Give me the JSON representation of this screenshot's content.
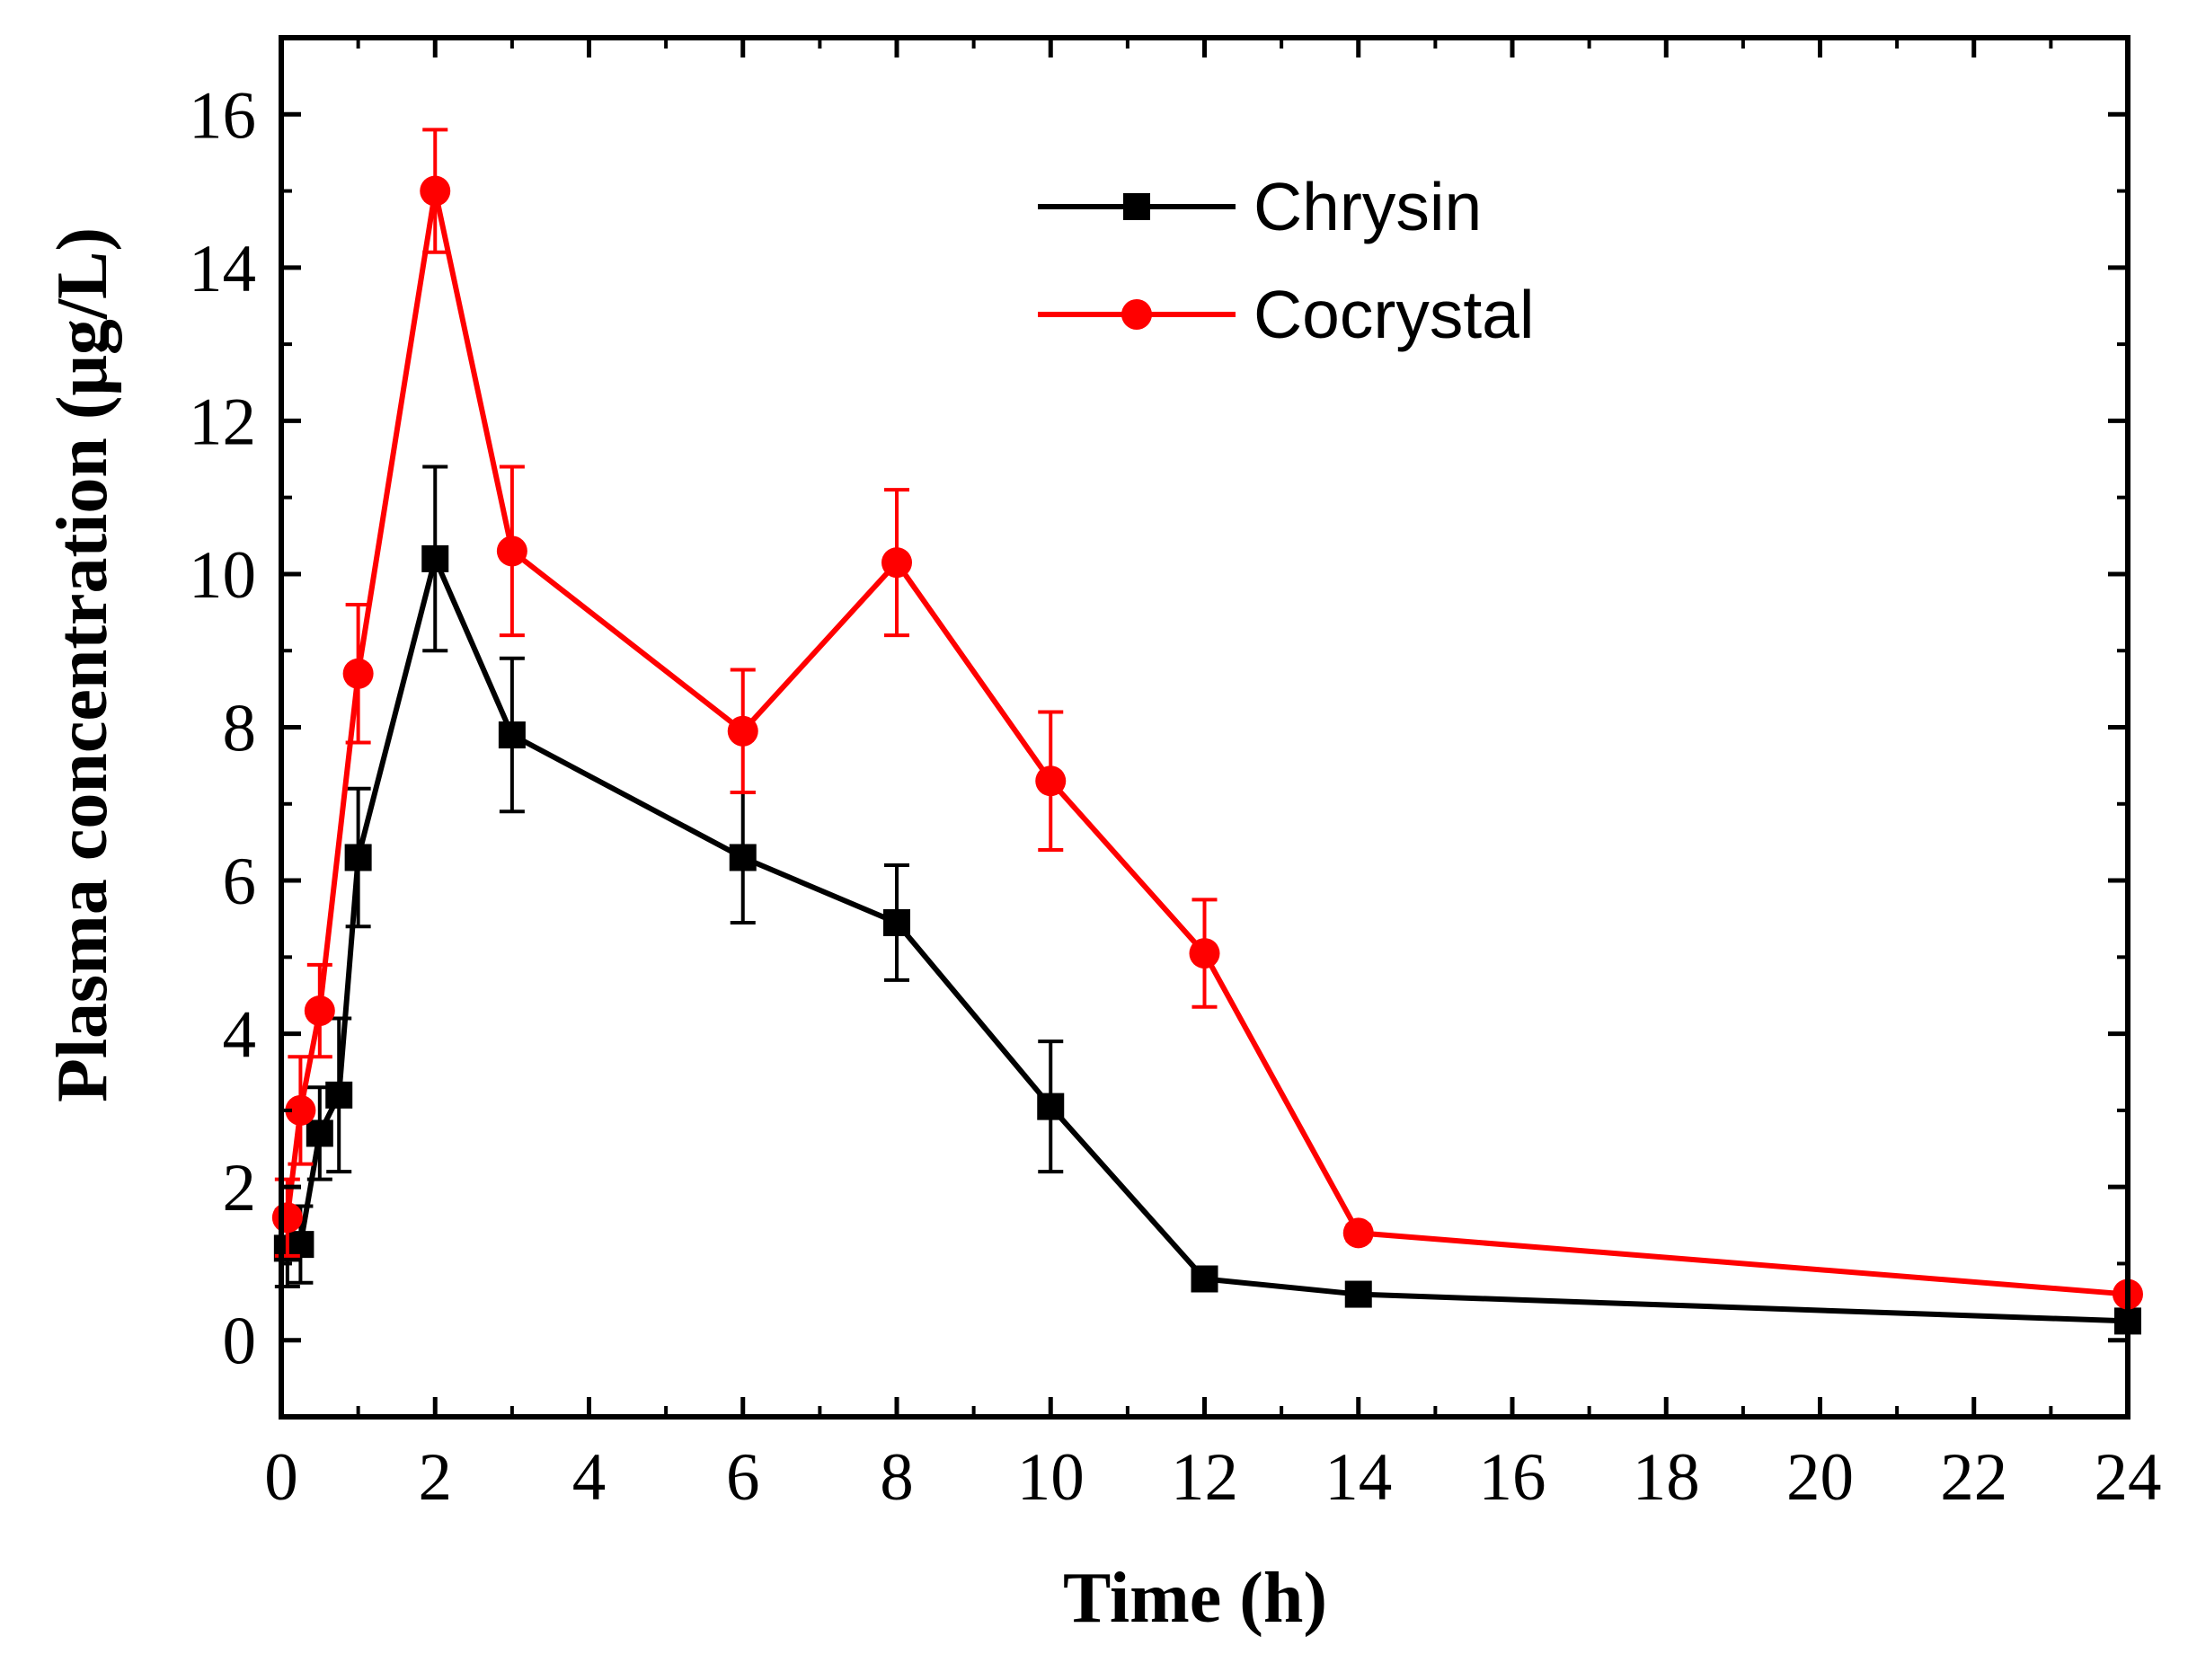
{
  "chart_data": {
    "type": "line",
    "title": "",
    "xlabel": "Time (h)",
    "ylabel": "Plasma concentration (μg/L)",
    "xlim": [
      0,
      24
    ],
    "ylim": [
      -1,
      17
    ],
    "grid": false,
    "legend_position": "top-center",
    "x_ticks": [
      0,
      2,
      4,
      6,
      8,
      10,
      12,
      14,
      16,
      18,
      20,
      22,
      24
    ],
    "x_tick_labels": [
      "0",
      "2",
      "4",
      "6",
      "8",
      "10",
      "12",
      "14",
      "16",
      "18",
      "20",
      "22",
      "24"
    ],
    "y_ticks": [
      0,
      2,
      4,
      6,
      8,
      10,
      12,
      14,
      16
    ],
    "y_tick_labels": [
      "0",
      "2",
      "4",
      "6",
      "8",
      "10",
      "12",
      "14",
      "16"
    ],
    "series": [
      {
        "name": "Chrysin",
        "color": "#000000",
        "marker": "square",
        "x": [
          0.08,
          0.25,
          0.5,
          0.75,
          1,
          2,
          3,
          6,
          8,
          10,
          12,
          14,
          24
        ],
        "y": [
          1.2,
          1.25,
          2.7,
          3.2,
          6.3,
          10.2,
          7.9,
          6.3,
          5.45,
          3.05,
          0.8,
          0.6,
          0.25
        ],
        "error": [
          0.5,
          0.5,
          0.6,
          1.0,
          0.9,
          1.2,
          1.0,
          0.85,
          0.75,
          0.85,
          0.1,
          0.15,
          0.05
        ]
      },
      {
        "name": "Cocrystal",
        "color": "#ff0000",
        "marker": "circle",
        "x": [
          0.08,
          0.25,
          0.5,
          1,
          2,
          3,
          6,
          8,
          10,
          12,
          14,
          24
        ],
        "y": [
          1.6,
          3.0,
          4.3,
          8.7,
          15.0,
          10.3,
          7.95,
          10.15,
          7.3,
          5.05,
          1.4,
          0.6
        ],
        "error": [
          0.5,
          0.7,
          0.6,
          0.9,
          0.8,
          1.1,
          0.8,
          0.95,
          0.9,
          0.7,
          0.1,
          0.05
        ]
      }
    ]
  }
}
